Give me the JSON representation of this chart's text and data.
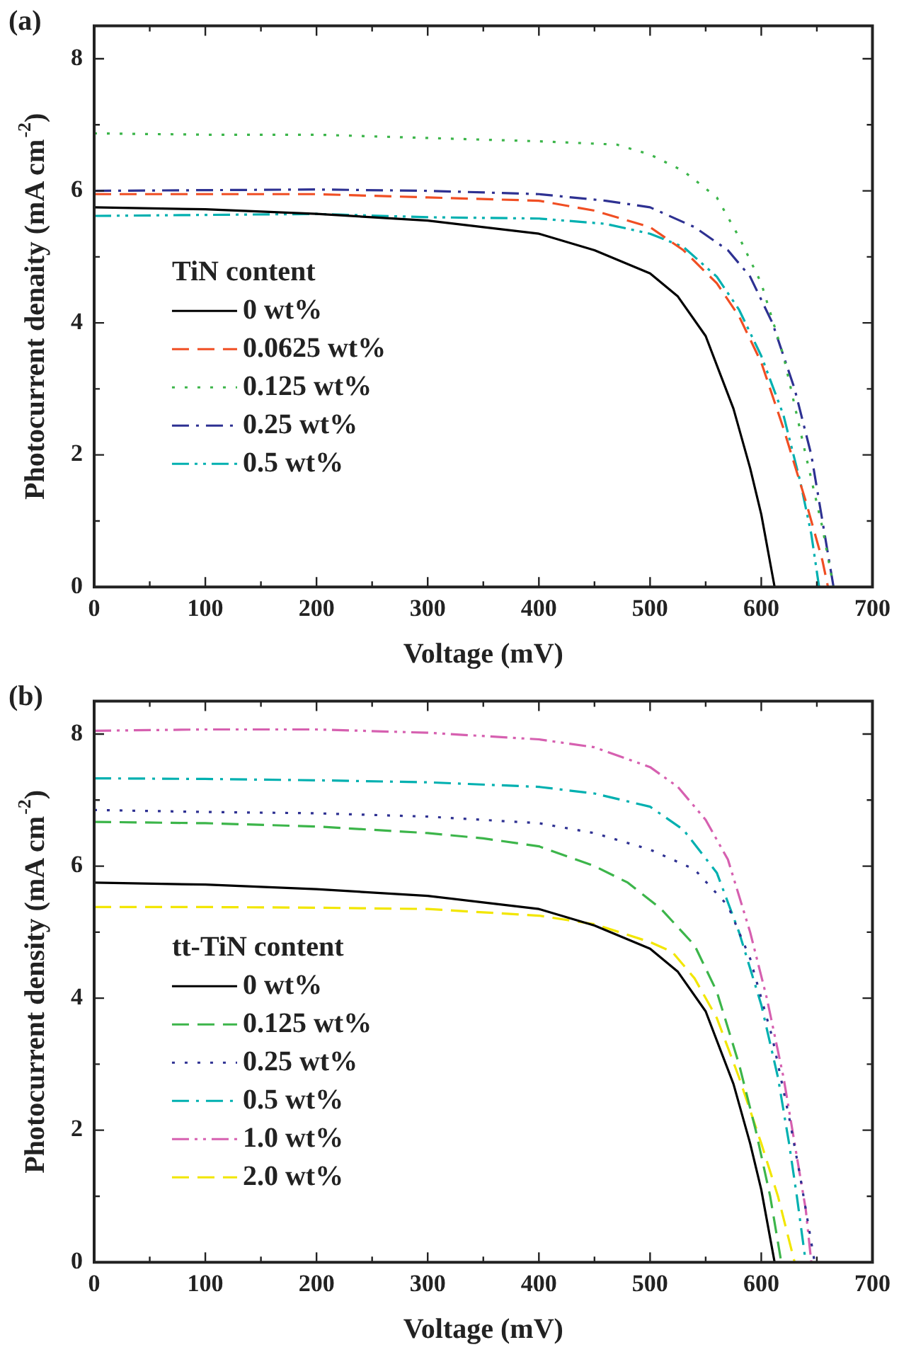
{
  "chart_data": [
    {
      "type": "line",
      "title": "(a)",
      "xlabel": "Voltage (mV)",
      "ylabel": "Photocurrent denaity (mA cm$^{-2}$)",
      "legend_title": "TiN content",
      "legend": "left",
      "grid": false,
      "xlim": [
        0,
        700
      ],
      "xticks": [
        0,
        {
          "value": 50,
          "label": null
        },
        100,
        {
          "value": 150,
          "label": null
        },
        200,
        {
          "value": 250,
          "label": null
        },
        300,
        {
          "value": 350,
          "label": null
        },
        400,
        {
          "value": 450,
          "label": null
        },
        500,
        {
          "value": 550,
          "label": null
        },
        600,
        {
          "value": 650,
          "label": null
        },
        700
      ],
      "ylim": [
        0,
        8.5
      ],
      "yticks": [
        0,
        {
          "value": 1,
          "label": null
        },
        2,
        {
          "value": 3,
          "label": null
        },
        4,
        {
          "value": 5,
          "label": null
        },
        6,
        {
          "value": 7,
          "label": null
        },
        8
      ],
      "series": [
        {
          "name": "0 wt%",
          "color": "#000000",
          "line_style": "solid",
          "x": [
            0,
            100,
            200,
            300,
            350,
            400,
            450,
            500,
            525,
            550,
            575,
            590,
            600,
            612
          ],
          "values": [
            5.75,
            5.72,
            5.65,
            5.55,
            5.45,
            5.35,
            5.1,
            4.75,
            4.4,
            3.8,
            2.7,
            1.8,
            1.1,
            0
          ]
        },
        {
          "name": "0.0625 wt%",
          "color": "#f04e23",
          "line_style": "dashed",
          "x": [
            0,
            200,
            300,
            400,
            450,
            500,
            530,
            560,
            580,
            600,
            620,
            640,
            655,
            660
          ],
          "values": [
            5.95,
            5.95,
            5.9,
            5.85,
            5.7,
            5.45,
            5.1,
            4.6,
            4.1,
            3.4,
            2.4,
            1.3,
            0.4,
            0
          ]
        },
        {
          "name": "0.125 wt%",
          "color": "#3cb54a",
          "line_style": "dotted",
          "x": [
            0,
            100,
            200,
            300,
            400,
            470,
            500,
            530,
            560,
            580,
            600,
            620,
            640,
            655,
            665
          ],
          "values": [
            6.87,
            6.85,
            6.85,
            6.8,
            6.75,
            6.7,
            6.55,
            6.3,
            5.9,
            5.3,
            4.6,
            3.5,
            2.0,
            0.9,
            0
          ]
        },
        {
          "name": "0.25 wt%",
          "color": "#2e3192",
          "line_style": "dashdot",
          "x": [
            0,
            200,
            300,
            400,
            460,
            500,
            540,
            570,
            590,
            610,
            630,
            645,
            655,
            665
          ],
          "values": [
            6.0,
            6.02,
            6.0,
            5.95,
            5.85,
            5.75,
            5.45,
            5.1,
            4.7,
            4.0,
            3.0,
            2.0,
            1.0,
            0
          ]
        },
        {
          "name": "0.5 wt%",
          "color": "#00b0b0",
          "line_style": "dashdotdot",
          "x": [
            0,
            200,
            300,
            400,
            460,
            500,
            530,
            560,
            580,
            600,
            620,
            635,
            645,
            652
          ],
          "values": [
            5.62,
            5.65,
            5.6,
            5.58,
            5.5,
            5.35,
            5.15,
            4.7,
            4.2,
            3.5,
            2.6,
            1.6,
            0.8,
            0
          ]
        }
      ]
    },
    {
      "type": "line",
      "title": "(b)",
      "xlabel": "Voltage (mV)",
      "ylabel": "Photocurrent density (mA cm$^{-2}$)",
      "legend_title": "tt-TiN content",
      "legend": "left",
      "grid": false,
      "xlim": [
        0,
        700
      ],
      "xticks": [
        0,
        {
          "value": 50,
          "label": null
        },
        100,
        {
          "value": 150,
          "label": null
        },
        200,
        {
          "value": 250,
          "label": null
        },
        300,
        {
          "value": 350,
          "label": null
        },
        400,
        {
          "value": 450,
          "label": null
        },
        500,
        {
          "value": 550,
          "label": null
        },
        600,
        {
          "value": 650,
          "label": null
        },
        700
      ],
      "ylim": [
        0,
        8.5
      ],
      "yticks": [
        0,
        {
          "value": 1,
          "label": null
        },
        2,
        {
          "value": 3,
          "label": null
        },
        4,
        {
          "value": 5,
          "label": null
        },
        6,
        {
          "value": 7,
          "label": null
        },
        8
      ],
      "series": [
        {
          "name": "0 wt%",
          "color": "#000000",
          "line_style": "solid",
          "x": [
            0,
            100,
            200,
            300,
            350,
            400,
            450,
            500,
            525,
            550,
            575,
            590,
            600,
            612
          ],
          "values": [
            5.75,
            5.72,
            5.65,
            5.55,
            5.45,
            5.35,
            5.1,
            4.75,
            4.4,
            3.8,
            2.7,
            1.8,
            1.1,
            0
          ]
        },
        {
          "name": "0.125 wt%",
          "color": "#3cb54a",
          "line_style": "dashed",
          "x": [
            0,
            100,
            200,
            300,
            350,
            400,
            450,
            480,
            510,
            540,
            560,
            580,
            595,
            608,
            618
          ],
          "values": [
            6.67,
            6.65,
            6.6,
            6.5,
            6.42,
            6.3,
            6.0,
            5.75,
            5.35,
            4.8,
            4.1,
            3.0,
            2.0,
            1.0,
            0
          ]
        },
        {
          "name": "0.25 wt%",
          "color": "#2e3192",
          "line_style": "dotted",
          "x": [
            0,
            100,
            200,
            300,
            400,
            450,
            500,
            540,
            570,
            590,
            610,
            625,
            635,
            648
          ],
          "values": [
            6.85,
            6.82,
            6.8,
            6.75,
            6.65,
            6.5,
            6.25,
            5.95,
            5.4,
            4.6,
            3.4,
            2.2,
            1.3,
            0
          ]
        },
        {
          "name": "0.5 wt%",
          "color": "#00b0b0",
          "line_style": "dashdot",
          "x": [
            0,
            100,
            200,
            300,
            400,
            450,
            500,
            530,
            560,
            580,
            600,
            615,
            625,
            632,
            640
          ],
          "values": [
            7.33,
            7.32,
            7.3,
            7.27,
            7.2,
            7.1,
            6.9,
            6.55,
            5.9,
            5.0,
            3.9,
            2.8,
            1.8,
            1.0,
            0
          ]
        },
        {
          "name": "1.0 wt%",
          "color": "#d660b0",
          "line_style": "dashdotdot",
          "x": [
            0,
            100,
            200,
            300,
            400,
            450,
            500,
            525,
            550,
            570,
            590,
            605,
            620,
            630,
            640,
            645
          ],
          "values": [
            8.05,
            8.07,
            8.07,
            8.02,
            7.92,
            7.8,
            7.5,
            7.2,
            6.7,
            6.1,
            5.0,
            4.0,
            2.8,
            1.8,
            0.8,
            0
          ]
        },
        {
          "name": "2.0 wt%",
          "color": "#f2e600",
          "line_style": "dashed",
          "x": [
            0,
            100,
            200,
            300,
            400,
            450,
            500,
            520,
            540,
            560,
            580,
            600,
            615,
            630
          ],
          "values": [
            5.38,
            5.38,
            5.37,
            5.35,
            5.25,
            5.12,
            4.85,
            4.7,
            4.3,
            3.7,
            2.8,
            1.8,
            1.0,
            0
          ]
        }
      ]
    }
  ]
}
